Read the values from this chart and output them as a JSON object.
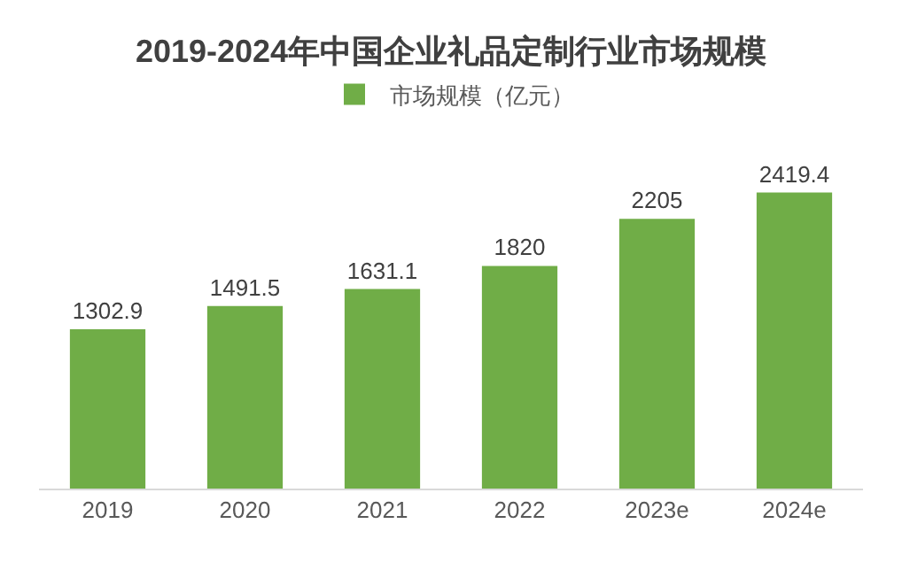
{
  "chart_data": {
    "type": "bar",
    "title": "2019-2024年中国企业礼品定制行业市场规模",
    "categories": [
      "2019",
      "2020",
      "2021",
      "2022",
      "2023e",
      "2024e"
    ],
    "series": [
      {
        "name": "市场规模（亿元）",
        "color": "#70ad47",
        "values": [
          1302.9,
          1491.5,
          1631.1,
          1820,
          2205,
          2419.4
        ]
      }
    ],
    "data_labels": true,
    "legend": "top",
    "grid": false
  }
}
